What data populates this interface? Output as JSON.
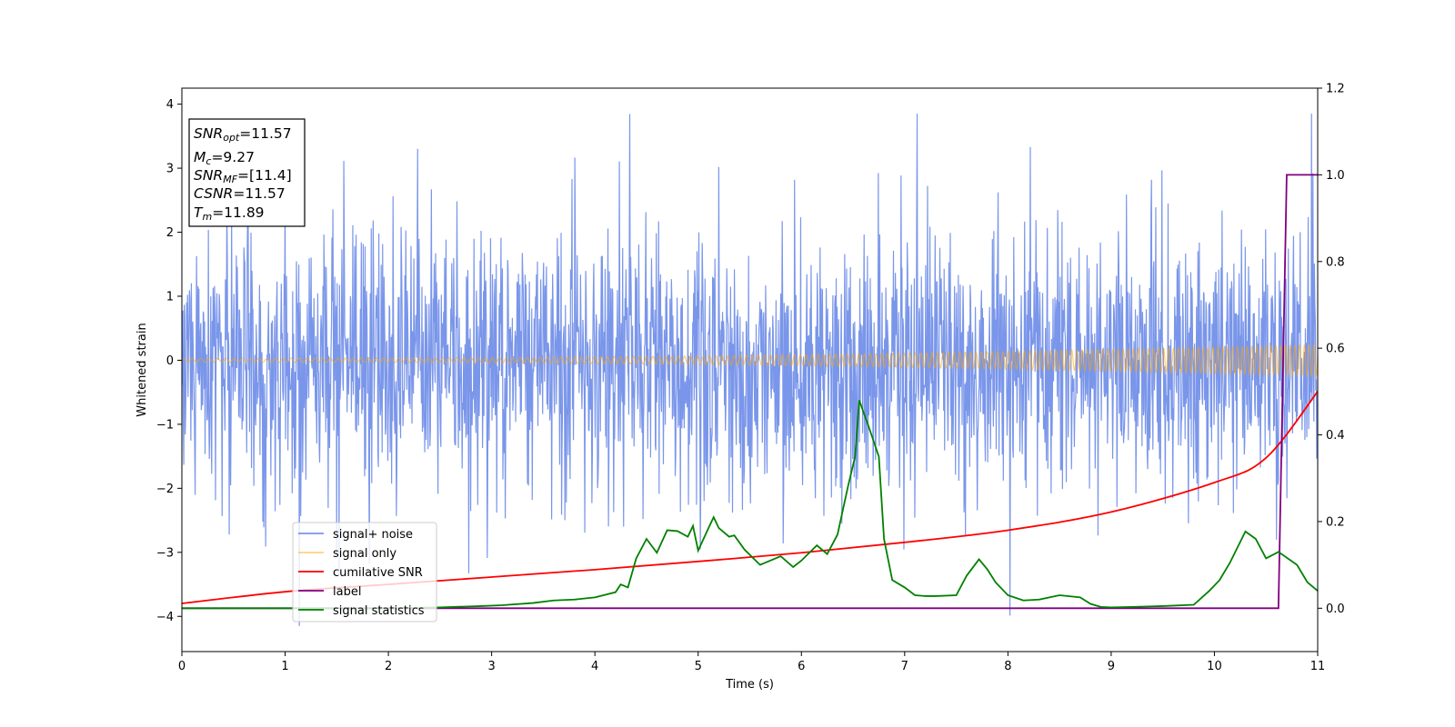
{
  "chart_data": {
    "type": "line",
    "xlabel": "Time (s)",
    "ylabel": "Whitened strain",
    "xlim": [
      0,
      11
    ],
    "ylim": [
      -4.55,
      4.25
    ],
    "y2lim": [
      -0.1,
      1.2
    ],
    "xticks": [
      "0",
      "1",
      "2",
      "3",
      "4",
      "5",
      "6",
      "7",
      "8",
      "9",
      "10",
      "11"
    ],
    "yticks": [
      "4",
      "3",
      "2",
      "1",
      "0",
      "−1",
      "−2",
      "−3",
      "−4"
    ],
    "y2ticks": [
      "1.2",
      "1.0",
      "0.8",
      "0.6",
      "0.4",
      "0.2",
      "0.0"
    ],
    "grid": false,
    "legend_position": "lower-left",
    "annotation": {
      "lines": [
        {
          "base": "SNR",
          "sub": "opt",
          "value": "=11.57"
        },
        {
          "base": "M",
          "sub": "c",
          "value": "=9.27"
        },
        {
          "base": "SNR",
          "sub": "MF",
          "value": "=[11.4]"
        },
        {
          "base": "CSNR",
          "sub": "",
          "value": "=11.57"
        },
        {
          "base": "T",
          "sub": "m",
          "value": "=11.89"
        }
      ]
    },
    "series": [
      {
        "name": "signal+ noise",
        "axis": "left",
        "color": "#4169e1",
        "kind": "noise",
        "description": "white noise band, std approx 1.0, range approx -4.2 to 3.9"
      },
      {
        "name": "signal only",
        "axis": "left",
        "color": "#ffa500",
        "kind": "chirp",
        "amplitude_start": 0.03,
        "amplitude_end": 0.25
      },
      {
        "name": "cumilative SNR",
        "axis": "right",
        "color": "#ff0000",
        "x": [
          0,
          1,
          2,
          3,
          4,
          5,
          6,
          7,
          8,
          9,
          10,
          10.5,
          11
        ],
        "y": [
          0.011,
          0.038,
          0.055,
          0.072,
          0.089,
          0.108,
          0.128,
          0.152,
          0.18,
          0.222,
          0.29,
          0.347,
          0.5
        ]
      },
      {
        "name": "label",
        "axis": "right",
        "color": "#800080",
        "x": [
          0,
          10.62,
          10.7,
          11
        ],
        "y": [
          0.0,
          0.0,
          1.0,
          1.0
        ]
      },
      {
        "name": "signal statistics",
        "axis": "right",
        "color": "#008000",
        "x": [
          0,
          1,
          2,
          2.5,
          2.9,
          3.1,
          3.4,
          3.6,
          3.8,
          4.0,
          4.2,
          4.25,
          4.32,
          4.4,
          4.5,
          4.6,
          4.7,
          4.8,
          4.9,
          4.95,
          5.0,
          5.1,
          5.15,
          5.2,
          5.3,
          5.35,
          5.45,
          5.6,
          5.8,
          5.92,
          6.0,
          6.15,
          6.25,
          6.35,
          6.45,
          6.52,
          6.56,
          6.65,
          6.75,
          6.8,
          6.88,
          6.95,
          7.0,
          7.1,
          7.2,
          7.3,
          7.5,
          7.6,
          7.72,
          7.8,
          7.88,
          8.0,
          8.15,
          8.3,
          8.5,
          8.7,
          8.8,
          8.9,
          9.0,
          9.2,
          9.5,
          9.8,
          9.95,
          10.05,
          10.15,
          10.3,
          10.4,
          10.5,
          10.62,
          10.8,
          10.9,
          11.0
        ],
        "y": [
          0.0,
          0.0,
          0.0,
          0.002,
          0.005,
          0.007,
          0.012,
          0.018,
          0.02,
          0.025,
          0.037,
          0.055,
          0.048,
          0.115,
          0.16,
          0.128,
          0.18,
          0.178,
          0.165,
          0.19,
          0.133,
          0.185,
          0.21,
          0.185,
          0.165,
          0.168,
          0.135,
          0.1,
          0.12,
          0.095,
          0.11,
          0.145,
          0.125,
          0.17,
          0.28,
          0.35,
          0.48,
          0.42,
          0.35,
          0.16,
          0.065,
          0.055,
          0.048,
          0.03,
          0.028,
          0.028,
          0.03,
          0.075,
          0.113,
          0.09,
          0.06,
          0.03,
          0.018,
          0.02,
          0.03,
          0.025,
          0.01,
          0.003,
          0.002,
          0.003,
          0.005,
          0.008,
          0.04,
          0.065,
          0.105,
          0.177,
          0.16,
          0.115,
          0.13,
          0.1,
          0.06,
          0.04
        ]
      }
    ]
  }
}
